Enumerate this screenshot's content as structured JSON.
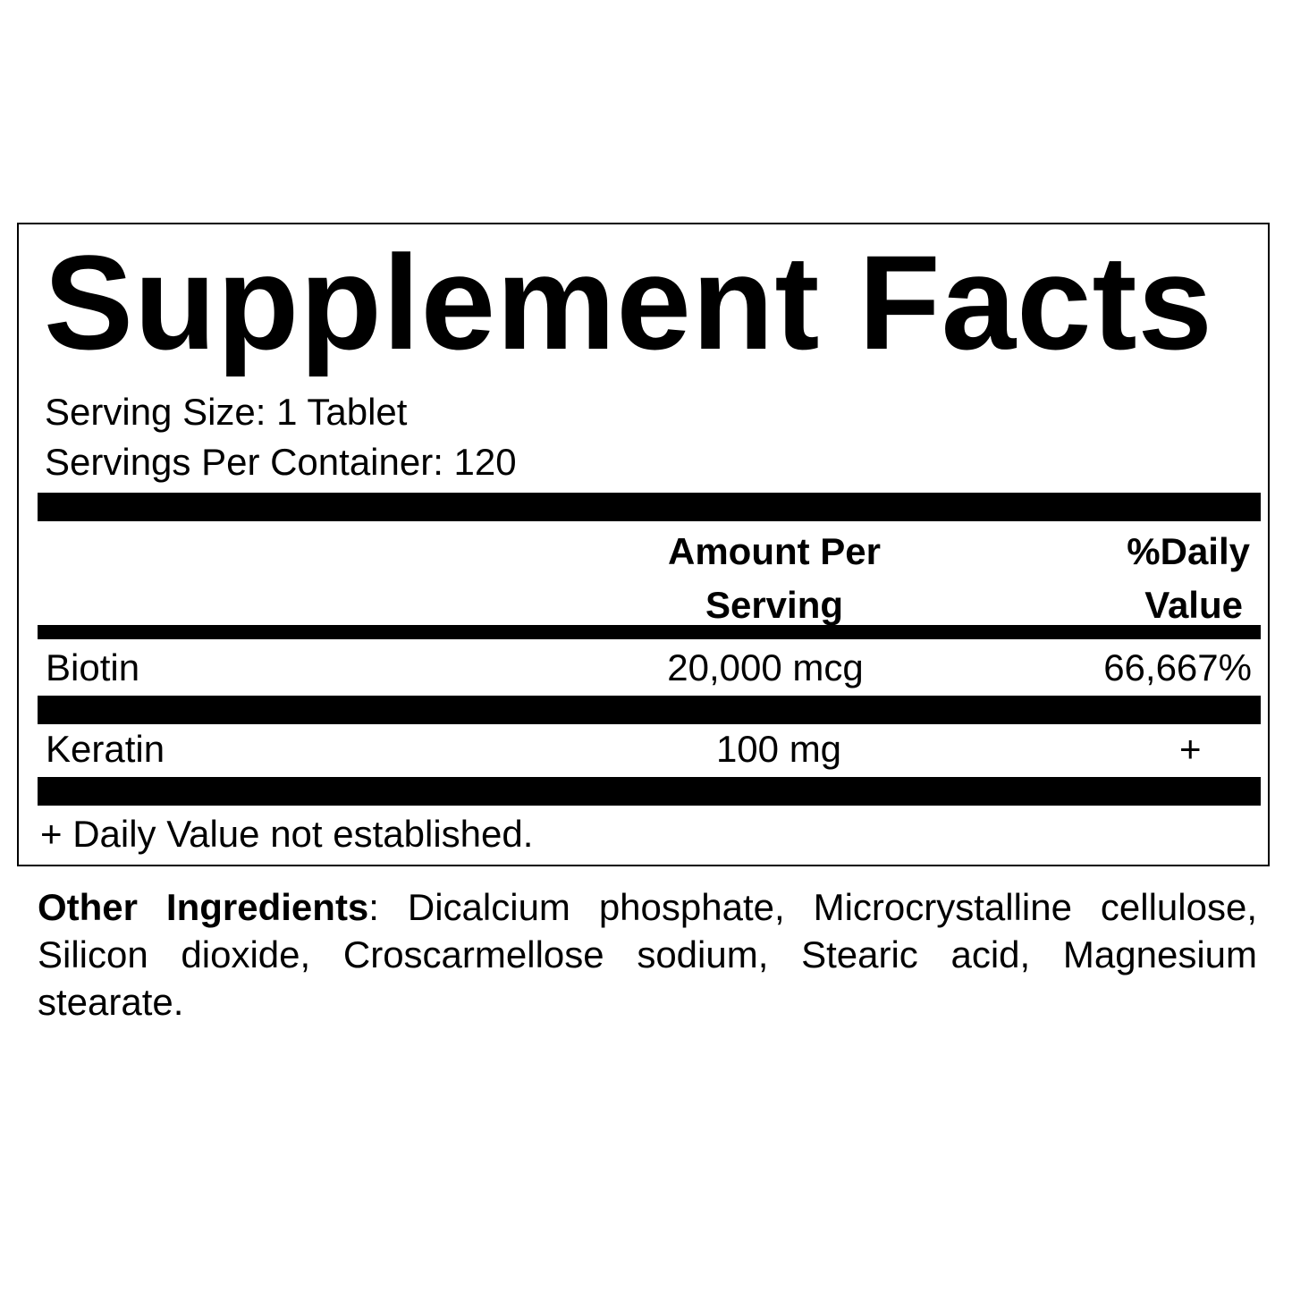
{
  "title": "Supplement Facts",
  "serving_size": "Serving Size: 1 Tablet",
  "servings_per_container": "Servings Per Container: 120",
  "headers": {
    "amount_line1": "Amount Per",
    "amount_line2": "Serving",
    "dv_line1": "%Daily",
    "dv_line2": "Value"
  },
  "rows": [
    {
      "name": "Biotin",
      "amount": "20,000 mcg",
      "dv": "66,667%"
    },
    {
      "name": "Keratin",
      "amount": "100 mg",
      "dv": "+"
    }
  ],
  "footnote": "+ Daily Value not established.",
  "other_ingredients": {
    "label": "Other Ingredients",
    "text": ": Dicalcium phosphate, Microcrystalline cellulose, Silicon dioxide, Croscarmellose sodium, Stearic acid, Magnesium stearate."
  }
}
